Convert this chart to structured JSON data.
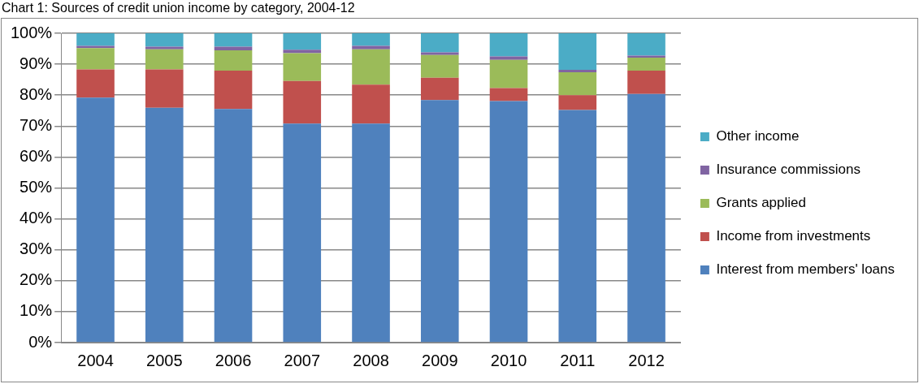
{
  "chart_data": {
    "type": "bar",
    "title": "Chart 1: Sources of credit union income by category, 2004-12",
    "stacked": true,
    "categories": [
      "2004",
      "2005",
      "2006",
      "2007",
      "2008",
      "2009",
      "2010",
      "2011",
      "2012"
    ],
    "series": [
      {
        "name": "Interest from members' loans",
        "color": "#4f81bd",
        "values": [
          79.2,
          75.9,
          75.5,
          70.8,
          70.8,
          78.4,
          78.1,
          75.2,
          80.4
        ]
      },
      {
        "name": "Income from investments",
        "color": "#c0504d",
        "values": [
          9.1,
          12.4,
          12.4,
          13.8,
          12.6,
          7.2,
          4.2,
          4.8,
          7.5
        ]
      },
      {
        "name": "Grants applied",
        "color": "#9bbb59",
        "values": [
          6.9,
          6.5,
          6.6,
          9.0,
          11.4,
          7.4,
          9.1,
          7.4,
          4.2
        ]
      },
      {
        "name": "Insurance commissions",
        "color": "#8064a2",
        "values": [
          0.7,
          0.9,
          1.2,
          1.1,
          1.1,
          0.8,
          1.1,
          0.8,
          0.7
        ]
      },
      {
        "name": "Other income",
        "color": "#4bacc6",
        "values": [
          4.1,
          4.3,
          4.3,
          5.3,
          4.1,
          6.2,
          7.5,
          11.8,
          7.2
        ]
      }
    ],
    "ylim": [
      0,
      100
    ],
    "yticks": [
      {
        "value": 0,
        "label": "0%"
      },
      {
        "value": 10,
        "label": "10%"
      },
      {
        "value": 20,
        "label": "20%"
      },
      {
        "value": 30,
        "label": "30%"
      },
      {
        "value": 40,
        "label": "40%"
      },
      {
        "value": 50,
        "label": "50%"
      },
      {
        "value": 60,
        "label": "60%"
      },
      {
        "value": 70,
        "label": "70%"
      },
      {
        "value": 80,
        "label": "80%"
      },
      {
        "value": 90,
        "label": "90%"
      },
      {
        "value": 100,
        "label": "100%"
      }
    ],
    "grid": "y",
    "legend": "right"
  }
}
